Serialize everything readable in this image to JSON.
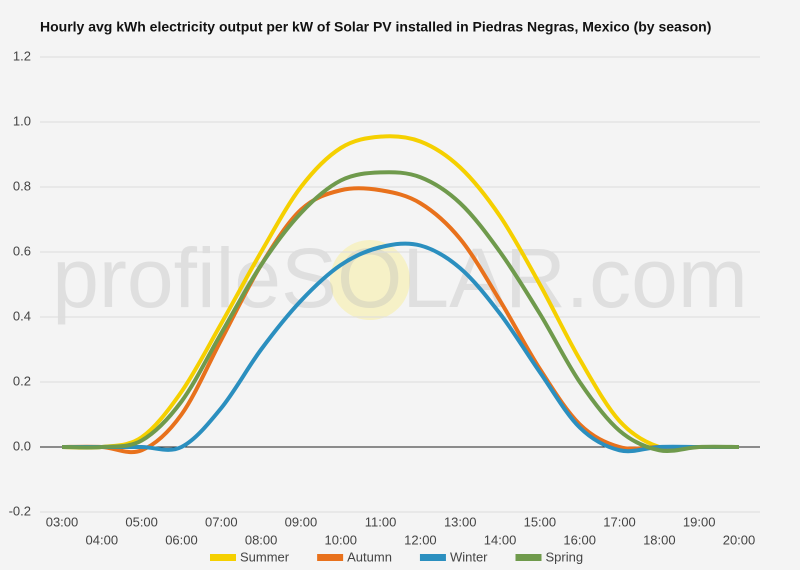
{
  "chart_data": {
    "type": "line",
    "title": "Hourly avg kWh electricity output per kW of Solar PV installed in Piedras Negras, Mexico (by season)",
    "watermark": "profileSOLAR.com",
    "categories": [
      "03:00",
      "04:00",
      "05:00",
      "06:00",
      "07:00",
      "08:00",
      "09:00",
      "10:00",
      "11:00",
      "12:00",
      "13:00",
      "14:00",
      "15:00",
      "16:00",
      "17:00",
      "18:00",
      "19:00",
      "20:00"
    ],
    "series": [
      {
        "name": "Summer",
        "color": "#f5d000",
        "values": [
          0,
          0,
          0.03,
          0.17,
          0.38,
          0.6,
          0.8,
          0.92,
          0.955,
          0.94,
          0.86,
          0.71,
          0.5,
          0.27,
          0.08,
          0,
          0,
          0
        ]
      },
      {
        "name": "Autumn",
        "color": "#e8711c",
        "values": [
          0,
          0,
          -0.01,
          0.1,
          0.33,
          0.56,
          0.73,
          0.79,
          0.79,
          0.75,
          0.64,
          0.45,
          0.24,
          0.07,
          0,
          0,
          0,
          0
        ]
      },
      {
        "name": "Winter",
        "color": "#2b8fbf",
        "values": [
          0,
          0,
          0,
          0,
          0.12,
          0.3,
          0.45,
          0.56,
          0.615,
          0.62,
          0.55,
          0.41,
          0.23,
          0.06,
          -0.01,
          0,
          0,
          0
        ]
      },
      {
        "name": "Spring",
        "color": "#6f9a4c",
        "values": [
          0,
          0,
          0.02,
          0.14,
          0.35,
          0.56,
          0.72,
          0.82,
          0.845,
          0.83,
          0.75,
          0.6,
          0.41,
          0.2,
          0.05,
          -0.01,
          0,
          0
        ]
      }
    ],
    "ylim": [
      -0.2,
      1.2
    ],
    "yticks": [
      -0.2,
      {
        "value": 0,
        "label": "0.0"
      },
      0.2,
      0.4,
      0.6,
      0.8,
      {
        "value": 1,
        "label": "1.0"
      },
      1.2
    ],
    "grid": true,
    "legend": "bottom"
  }
}
